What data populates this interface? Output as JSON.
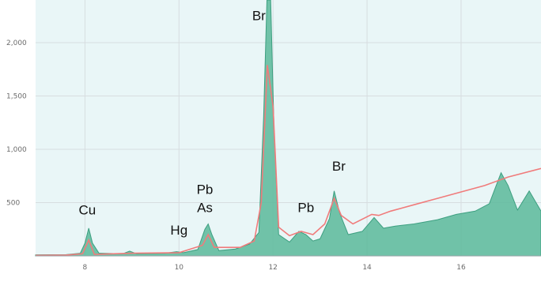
{
  "chart_data": {
    "type": "area",
    "title": "",
    "xlabel": "",
    "ylabel": "",
    "xlim": [
      6.95,
      17.7
    ],
    "ylim": [
      0,
      2400
    ],
    "x_ticks": [
      8,
      10,
      12,
      14,
      16
    ],
    "x_tick_labels": [
      "8",
      "10",
      "12",
      "14",
      "16"
    ],
    "y_ticks": [
      500,
      1000,
      1500,
      2000
    ],
    "y_tick_labels": [
      "500",
      "1,000",
      "1,500",
      "2,000"
    ],
    "grid": true,
    "legend": "none",
    "colors": {
      "background": "#e9f6f7",
      "area_fill": "#5bb89a",
      "area_stroke": "#3d9f80",
      "line": "#f07b7b",
      "grid": "#d7dde0"
    },
    "series": [
      {
        "kind": "area",
        "points": [
          [
            6.95,
            10
          ],
          [
            7.6,
            12
          ],
          [
            7.9,
            25
          ],
          [
            8.0,
            120
          ],
          [
            8.08,
            260
          ],
          [
            8.16,
            120
          ],
          [
            8.3,
            25
          ],
          [
            8.8,
            20
          ],
          [
            8.95,
            45
          ],
          [
            9.1,
            20
          ],
          [
            9.7,
            25
          ],
          [
            9.95,
            40
          ],
          [
            10.1,
            30
          ],
          [
            10.4,
            60
          ],
          [
            10.55,
            250
          ],
          [
            10.62,
            300
          ],
          [
            10.7,
            200
          ],
          [
            10.85,
            50
          ],
          [
            11.2,
            65
          ],
          [
            11.5,
            110
          ],
          [
            11.7,
            220
          ],
          [
            11.8,
            1300
          ],
          [
            11.87,
            2400
          ],
          [
            11.95,
            2400
          ],
          [
            12.02,
            1200
          ],
          [
            12.12,
            200
          ],
          [
            12.35,
            130
          ],
          [
            12.55,
            230
          ],
          [
            12.7,
            200
          ],
          [
            12.85,
            140
          ],
          [
            13.0,
            160
          ],
          [
            13.2,
            350
          ],
          [
            13.3,
            610
          ],
          [
            13.42,
            400
          ],
          [
            13.6,
            200
          ],
          [
            13.9,
            230
          ],
          [
            14.15,
            360
          ],
          [
            14.35,
            260
          ],
          [
            14.6,
            280
          ],
          [
            15.0,
            300
          ],
          [
            15.5,
            340
          ],
          [
            15.9,
            390
          ],
          [
            16.3,
            420
          ],
          [
            16.6,
            490
          ],
          [
            16.85,
            780
          ],
          [
            17.0,
            660
          ],
          [
            17.2,
            430
          ],
          [
            17.45,
            610
          ],
          [
            17.7,
            420
          ]
        ]
      },
      {
        "kind": "line",
        "points": [
          [
            6.95,
            5
          ],
          [
            7.6,
            8
          ],
          [
            7.95,
            20
          ],
          [
            8.08,
            150
          ],
          [
            8.2,
            15
          ],
          [
            9.0,
            25
          ],
          [
            10.0,
            30
          ],
          [
            10.5,
            100
          ],
          [
            10.62,
            200
          ],
          [
            10.75,
            80
          ],
          [
            11.3,
            80
          ],
          [
            11.6,
            140
          ],
          [
            11.75,
            500
          ],
          [
            11.88,
            1790
          ],
          [
            12.0,
            1400
          ],
          [
            12.12,
            270
          ],
          [
            12.35,
            190
          ],
          [
            12.6,
            230
          ],
          [
            12.85,
            200
          ],
          [
            13.1,
            300
          ],
          [
            13.3,
            540
          ],
          [
            13.45,
            380
          ],
          [
            13.7,
            300
          ],
          [
            14.1,
            390
          ],
          [
            14.25,
            380
          ],
          [
            14.5,
            420
          ],
          [
            15.0,
            480
          ],
          [
            15.5,
            540
          ],
          [
            16.0,
            600
          ],
          [
            16.5,
            660
          ],
          [
            17.0,
            740
          ],
          [
            17.7,
            820
          ]
        ]
      }
    ],
    "annotations": [
      {
        "text": "Cu",
        "x": 8.05,
        "y": 390
      },
      {
        "text": "Hg",
        "x": 10.0,
        "y": 200
      },
      {
        "text": "Pb",
        "x": 10.55,
        "y": 580
      },
      {
        "text": "As",
        "x": 10.55,
        "y": 410
      },
      {
        "text": "Br",
        "x": 11.7,
        "y": 2210
      },
      {
        "text": "Pb",
        "x": 12.7,
        "y": 410
      },
      {
        "text": "Br",
        "x": 13.4,
        "y": 800
      }
    ]
  }
}
